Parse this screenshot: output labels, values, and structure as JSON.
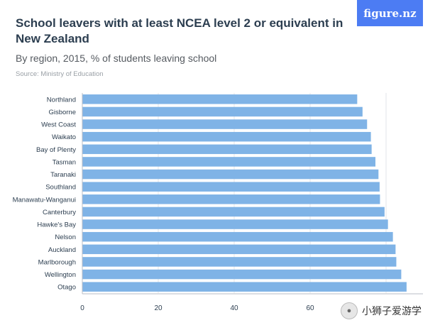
{
  "header": {
    "title": "School leavers with at least NCEA level 2 or equivalent in New Zealand",
    "subtitle": "By region, 2015, % of students leaving school",
    "source": "Source: Ministry of Education"
  },
  "brand": {
    "label": "figure.nz",
    "color": "#4c7cf3"
  },
  "watermark": {
    "label": "小狮子爱游学",
    "icon": "wechat-icon"
  },
  "colors": {
    "bar": "#7fb3e6",
    "grid": "#e3e6ea",
    "axis": "#b8bec6"
  },
  "chart_data": {
    "type": "bar",
    "orientation": "horizontal",
    "title": "School leavers with at least NCEA level 2 or equivalent in New Zealand",
    "subtitle": "By region, 2015, % of students leaving school",
    "categories": [
      "Northland",
      "Gisborne",
      "West Coast",
      "Waikato",
      "Bay of Plenty",
      "Tasman",
      "Taranaki",
      "Southland",
      "Manawatu-Wanganui",
      "Canterbury",
      "Hawke's Bay",
      "Nelson",
      "Auckland",
      "Marlborough",
      "Wellington",
      "Otago"
    ],
    "values": [
      72.4,
      73.8,
      75.0,
      76.0,
      76.2,
      77.2,
      78.0,
      78.3,
      78.4,
      79.6,
      80.5,
      81.8,
      82.5,
      82.7,
      84.0,
      85.4
    ],
    "xlim": [
      0,
      90
    ],
    "xticks": [
      0,
      20,
      40,
      60
    ],
    "grid": true
  }
}
